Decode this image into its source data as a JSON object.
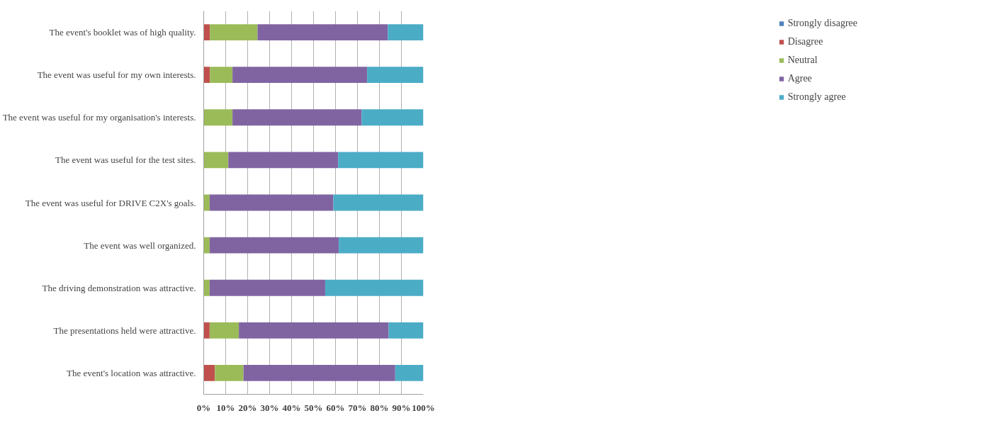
{
  "chart_data": {
    "type": "bar",
    "orientation": "horizontal",
    "stacked": true,
    "categories": [
      "The event's booklet was of high quality.",
      "The event was useful for my own interests.",
      "The event was useful for my organisation's interests.",
      "The event was useful for the test sites.",
      "The event was useful for DRIVE C2X's goals.",
      "The event was well organized.",
      "The driving demonstration was attractive.",
      "The presentations held were attractive.",
      "The event's location was attractive."
    ],
    "series": [
      {
        "name": "Strongly disagree",
        "color": "#4f81bd",
        "values": [
          0,
          0,
          0,
          0,
          0,
          0,
          0,
          0,
          0
        ]
      },
      {
        "name": "Disagree",
        "color": "#c0504d",
        "values": [
          2.8,
          2.8,
          0,
          0,
          0,
          0,
          0,
          2.7,
          5.1
        ]
      },
      {
        "name": "Neutral",
        "color": "#9bbb59",
        "values": [
          21.7,
          10.3,
          13.1,
          11.2,
          2.7,
          2.7,
          2.7,
          13.3,
          13.0
        ]
      },
      {
        "name": "Agree",
        "color": "#8064a2",
        "values": [
          59.3,
          61.3,
          58.8,
          50.0,
          56.3,
          58.8,
          52.6,
          68.2,
          69.1
        ]
      },
      {
        "name": "Strongly agree",
        "color": "#4bacc6",
        "values": [
          16.2,
          25.6,
          28.1,
          38.8,
          41.0,
          38.5,
          44.7,
          15.8,
          12.8
        ]
      }
    ],
    "xlim": [
      0,
      100
    ],
    "xticks": [
      {
        "value": 0,
        "label": "0%"
      },
      {
        "value": 10,
        "label": "10%"
      },
      {
        "value": 20,
        "label": "20%"
      },
      {
        "value": 30,
        "label": "30%"
      },
      {
        "value": 40,
        "label": "40%"
      },
      {
        "value": 50,
        "label": "50%"
      },
      {
        "value": 60,
        "label": "60%"
      },
      {
        "value": 70,
        "label": "70%"
      },
      {
        "value": 80,
        "label": "80%"
      },
      {
        "value": 90,
        "label": "90%"
      },
      {
        "value": 100,
        "label": "100%"
      }
    ],
    "grid": "x",
    "legend": "right"
  }
}
